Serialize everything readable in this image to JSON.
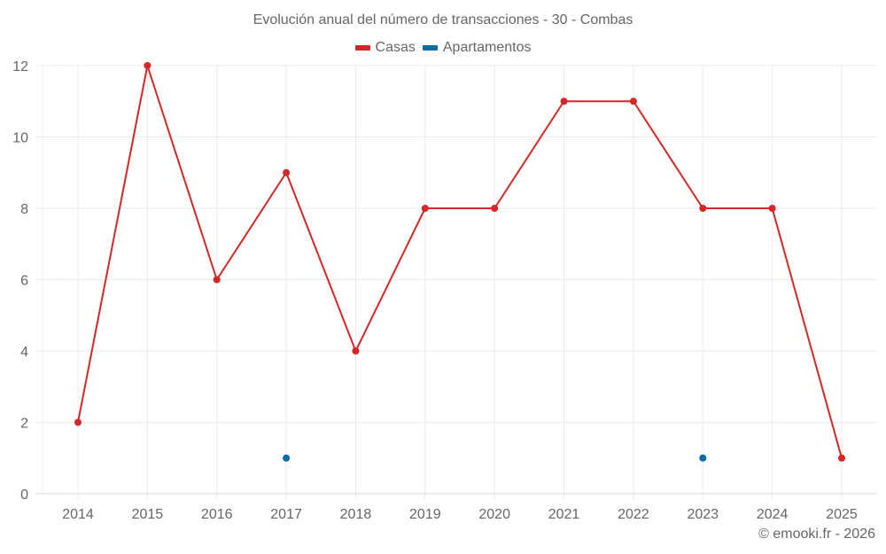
{
  "chart_data": {
    "type": "line",
    "title": "Evolución anual del número de transacciones - 30 - Combas",
    "xlabel": "",
    "ylabel": "",
    "categories": [
      "2014",
      "2015",
      "2016",
      "2017",
      "2018",
      "2019",
      "2020",
      "2021",
      "2022",
      "2023",
      "2024",
      "2025"
    ],
    "ylim": [
      0,
      12
    ],
    "yticks": [
      0,
      2,
      4,
      6,
      8,
      10,
      12
    ],
    "grid": true,
    "legend_position": "top",
    "series": [
      {
        "name": "Casas",
        "color": "#d62728",
        "values": [
          2,
          12,
          6,
          9,
          4,
          8,
          8,
          11,
          11,
          8,
          8,
          1
        ],
        "mode": "lines+markers"
      },
      {
        "name": "Apartamentos",
        "color": "#0f6aa6",
        "values": [
          null,
          null,
          null,
          1,
          null,
          null,
          null,
          null,
          null,
          1,
          null,
          null
        ],
        "mode": "markers"
      }
    ]
  },
  "footer": {
    "copyright": "© emooki.fr - 2026"
  }
}
